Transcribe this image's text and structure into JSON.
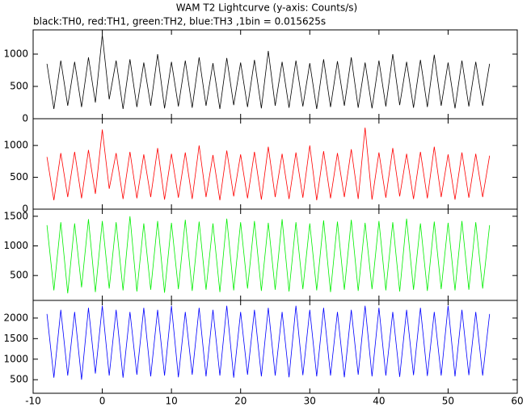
{
  "chart_data": [
    {
      "type": "line",
      "title": "WAM T2 Lightcurve (y-axis: Counts/s)",
      "subtitle": "black:TH0, red:TH1, green:TH2, blue:TH3 ,1bin = 0.015625s",
      "x": [
        -8,
        -7,
        -6,
        -5,
        -4,
        -3,
        -2,
        -1,
        0,
        1,
        2,
        3,
        4,
        5,
        6,
        7,
        8,
        9,
        10,
        11,
        12,
        13,
        14,
        15,
        16,
        17,
        18,
        19,
        20,
        21,
        22,
        23,
        24,
        25,
        26,
        27,
        28,
        29,
        30,
        31,
        32,
        33,
        34,
        35,
        36,
        37,
        38,
        39,
        40,
        41,
        42,
        43,
        44,
        45,
        46,
        47,
        48,
        49,
        50,
        51,
        52,
        53,
        54,
        55,
        56
      ],
      "series": [
        {
          "color": "#000000",
          "values": [
            850,
            150,
            900,
            200,
            880,
            180,
            950,
            250,
            1300,
            300,
            900,
            150,
            920,
            180,
            870,
            200,
            1000,
            160,
            880,
            190,
            900,
            170,
            950,
            200,
            860,
            150,
            940,
            210,
            870,
            180,
            910,
            160,
            1050,
            200,
            880,
            170,
            900,
            190,
            860,
            150,
            920,
            180,
            890,
            200,
            950,
            170,
            870,
            160,
            900,
            190,
            1000,
            210,
            880,
            170,
            910,
            180,
            990,
            200,
            870,
            160,
            900,
            190,
            880,
            200,
            850
          ]
        }
      ],
      "xlim": [
        -10,
        60
      ],
      "ylim": [
        0,
        1375
      ],
      "yticks": [
        0,
        500,
        1000
      ]
    },
    {
      "type": "line",
      "x": [
        -8,
        -7,
        -6,
        -5,
        -4,
        -3,
        -2,
        -1,
        0,
        1,
        2,
        3,
        4,
        5,
        6,
        7,
        8,
        9,
        10,
        11,
        12,
        13,
        14,
        15,
        16,
        17,
        18,
        19,
        20,
        21,
        22,
        23,
        24,
        25,
        26,
        27,
        28,
        29,
        30,
        31,
        32,
        33,
        34,
        35,
        36,
        37,
        38,
        39,
        40,
        41,
        42,
        43,
        44,
        45,
        46,
        47,
        48,
        49,
        50,
        51,
        52,
        53,
        54,
        55,
        56
      ],
      "series": [
        {
          "color": "#ff0000",
          "values": [
            820,
            140,
            880,
            190,
            900,
            170,
            930,
            240,
            1250,
            320,
            880,
            160,
            900,
            170,
            860,
            190,
            960,
            150,
            870,
            180,
            890,
            160,
            1000,
            190,
            850,
            140,
            920,
            200,
            860,
            170,
            900,
            150,
            980,
            190,
            870,
            160,
            890,
            180,
            1000,
            140,
            910,
            170,
            880,
            190,
            940,
            160,
            1280,
            150,
            890,
            180,
            960,
            200,
            870,
            160,
            900,
            170,
            980,
            190,
            860,
            150,
            890,
            180,
            870,
            190,
            840
          ]
        }
      ],
      "xlim": [
        -10,
        60
      ],
      "ylim": [
        0,
        1420
      ],
      "yticks": [
        0,
        500,
        1000
      ]
    },
    {
      "type": "line",
      "x": [
        -8,
        -7,
        -6,
        -5,
        -4,
        -3,
        -2,
        -1,
        0,
        1,
        2,
        3,
        4,
        5,
        6,
        7,
        8,
        9,
        10,
        11,
        12,
        13,
        14,
        15,
        16,
        17,
        18,
        19,
        20,
        21,
        22,
        23,
        24,
        25,
        26,
        27,
        28,
        29,
        30,
        31,
        32,
        33,
        34,
        35,
        36,
        37,
        38,
        39,
        40,
        41,
        42,
        43,
        44,
        45,
        46,
        47,
        48,
        49,
        50,
        51,
        52,
        53,
        54,
        55,
        56
      ],
      "series": [
        {
          "color": "#00ee00",
          "values": [
            1350,
            250,
            1400,
            200,
            1380,
            300,
            1450,
            220,
            1420,
            280,
            1400,
            250,
            1500,
            230,
            1380,
            260,
            1420,
            210,
            1390,
            270,
            1440,
            240,
            1410,
            260,
            1380,
            220,
            1460,
            250,
            1400,
            280,
            1420,
            240,
            1390,
            260,
            1450,
            230,
            1400,
            270,
            1380,
            250,
            1430,
            220,
            1410,
            260,
            1440,
            240,
            1390,
            270,
            1420,
            250,
            1400,
            230,
            1460,
            260,
            1380,
            240,
            1410,
            270,
            1390,
            250,
            1420,
            260,
            1400,
            280,
            1350
          ]
        }
      ],
      "xlim": [
        -10,
        60
      ],
      "ylim": [
        80,
        1620
      ],
      "yticks": [
        500,
        1000,
        1500
      ]
    },
    {
      "type": "line",
      "x": [
        -8,
        -7,
        -6,
        -5,
        -4,
        -3,
        -2,
        -1,
        0,
        1,
        2,
        3,
        4,
        5,
        6,
        7,
        8,
        9,
        10,
        11,
        12,
        13,
        14,
        15,
        16,
        17,
        18,
        19,
        20,
        21,
        22,
        23,
        24,
        25,
        26,
        27,
        28,
        29,
        30,
        31,
        32,
        33,
        34,
        35,
        36,
        37,
        38,
        39,
        40,
        41,
        42,
        43,
        44,
        45,
        46,
        47,
        48,
        49,
        50,
        51,
        52,
        53,
        54,
        55,
        56
      ],
      "series": [
        {
          "color": "#0000ff",
          "values": [
            2100,
            550,
            2200,
            600,
            2150,
            500,
            2250,
            650,
            2300,
            600,
            2200,
            550,
            2150,
            620,
            2250,
            580,
            2200,
            600,
            2300,
            560,
            2150,
            620,
            2250,
            580,
            2200,
            600,
            2300,
            550,
            2150,
            620,
            2200,
            580,
            2250,
            600,
            2150,
            560,
            2300,
            610,
            2200,
            580,
            2250,
            600,
            2150,
            560,
            2200,
            620,
            2300,
            580,
            2250,
            600,
            2150,
            570,
            2200,
            610,
            2250,
            590,
            2150,
            600,
            2300,
            580,
            2200,
            610,
            2150,
            600,
            2100
          ]
        }
      ],
      "xlim": [
        -10,
        60
      ],
      "ylim": [
        170,
        2430
      ],
      "yticks": [
        500,
        1000,
        1500,
        2000
      ],
      "xticks": [
        -10,
        0,
        10,
        20,
        30,
        40,
        50,
        60
      ]
    }
  ]
}
